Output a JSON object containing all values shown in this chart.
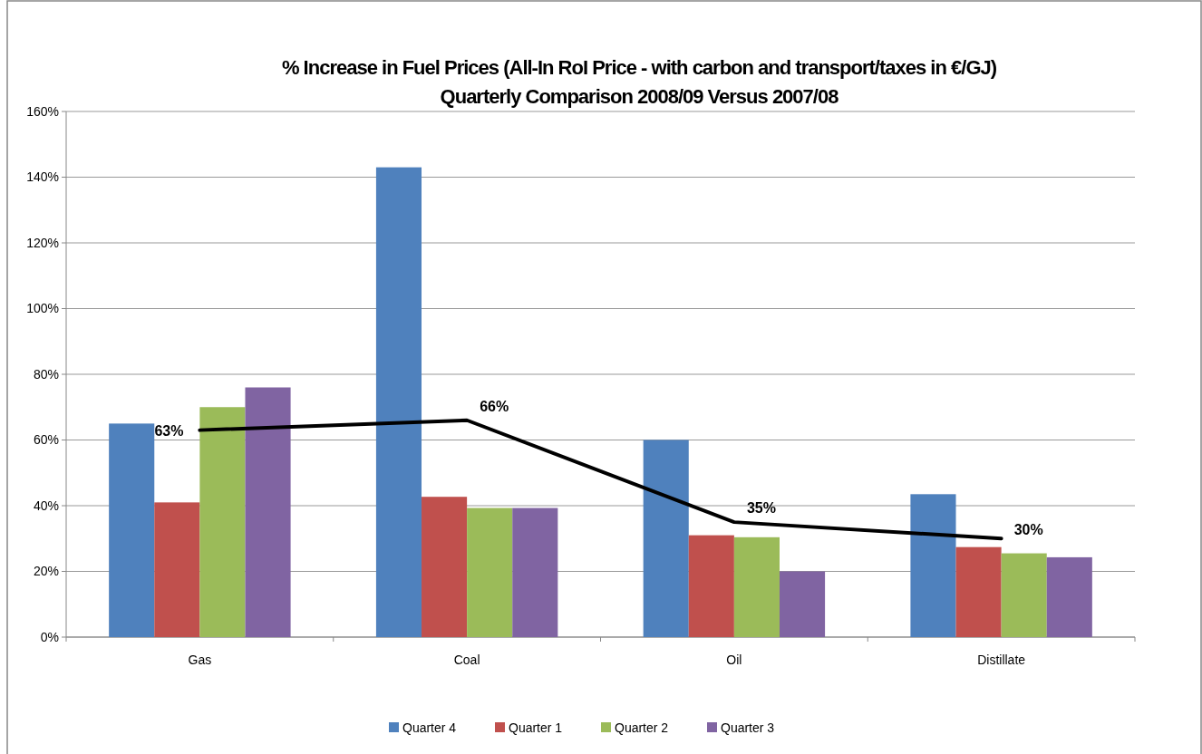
{
  "chart_data": {
    "type": "bar",
    "title": "% Increase in Fuel Prices (All-In RoI Price - with carbon and transport/taxes in €/GJ)",
    "subtitle": "Quarterly Comparison 2008/09 Versus 2007/08",
    "categories": [
      "Gas",
      "Coal",
      "Oil",
      "Distillate"
    ],
    "series": [
      {
        "name": "Quarter 4",
        "color": "#4f81bd",
        "values": [
          65,
          143,
          60,
          43.5
        ]
      },
      {
        "name": "Quarter 1",
        "color": "#c0504d",
        "values": [
          41,
          42.7,
          31,
          27.4
        ]
      },
      {
        "name": "Quarter 2",
        "color": "#9bbb59",
        "values": [
          70,
          39.3,
          30.4,
          25.5
        ]
      },
      {
        "name": "Quarter 3",
        "color": "#8064a2",
        "values": [
          76,
          39.3,
          20,
          24.3
        ]
      },
      {
        "type": "line",
        "color": "#000000",
        "values": [
          63,
          66,
          35,
          30
        ],
        "value_labels": [
          "63%",
          "66%",
          "35%",
          "30%"
        ]
      }
    ],
    "ylim": [
      0,
      160
    ],
    "yticks": [
      {
        "value": 0,
        "label": "0%"
      },
      {
        "value": 20,
        "label": "20%"
      },
      {
        "value": 40,
        "label": "40%"
      },
      {
        "value": 60,
        "label": "60%"
      },
      {
        "value": 80,
        "label": "80%"
      },
      {
        "value": 100,
        "label": "100%"
      },
      {
        "value": 120,
        "label": "120%"
      },
      {
        "value": 140,
        "label": "140%"
      },
      {
        "value": 160,
        "label": "160%"
      }
    ],
    "grid": "y",
    "legend": "bottom"
  }
}
